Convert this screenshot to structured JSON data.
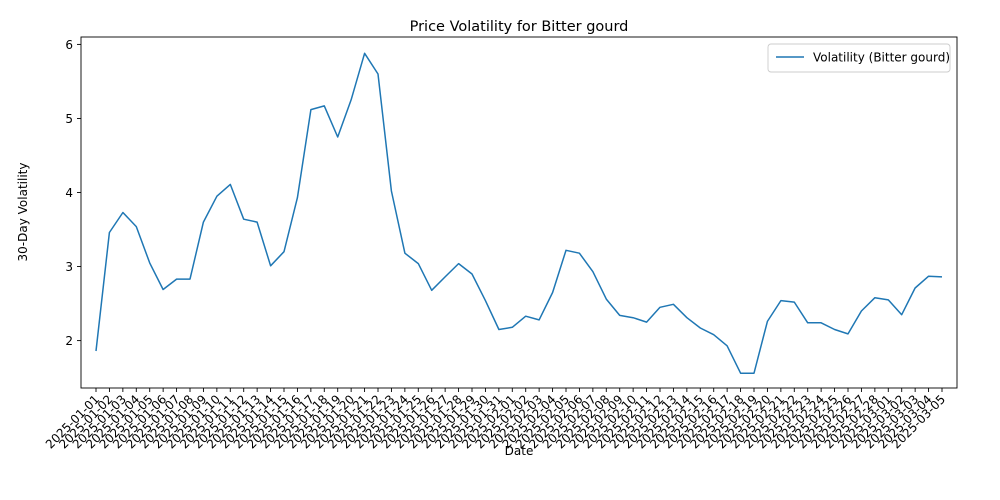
{
  "chart_data": {
    "type": "line",
    "title": "Price Volatility for Bitter gourd",
    "xlabel": "Date",
    "ylabel": "30-Day Volatility",
    "ylim": [
      1.36,
      6.1
    ],
    "yticks": [
      2,
      3,
      4,
      5,
      6
    ],
    "grid": false,
    "legend_position": "top-right",
    "x": [
      "2025-01-01",
      "2025-01-02",
      "2025-01-03",
      "2025-01-04",
      "2025-01-05",
      "2025-01-06",
      "2025-01-07",
      "2025-01-08",
      "2025-01-09",
      "2025-01-10",
      "2025-01-11",
      "2025-01-12",
      "2025-01-13",
      "2025-01-14",
      "2025-01-15",
      "2025-01-16",
      "2025-01-17",
      "2025-01-18",
      "2025-01-19",
      "2025-01-20",
      "2025-01-21",
      "2025-01-22",
      "2025-01-23",
      "2025-01-24",
      "2025-01-25",
      "2025-01-26",
      "2025-01-27",
      "2025-01-28",
      "2025-01-29",
      "2025-01-30",
      "2025-01-31",
      "2025-02-01",
      "2025-02-02",
      "2025-02-03",
      "2025-02-04",
      "2025-02-05",
      "2025-02-06",
      "2025-02-07",
      "2025-02-08",
      "2025-02-09",
      "2025-02-10",
      "2025-02-11",
      "2025-02-12",
      "2025-02-13",
      "2025-02-14",
      "2025-02-15",
      "2025-02-16",
      "2025-02-17",
      "2025-02-18",
      "2025-02-19",
      "2025-02-20",
      "2025-02-21",
      "2025-02-22",
      "2025-02-23",
      "2025-02-24",
      "2025-02-25",
      "2025-02-26",
      "2025-02-27",
      "2025-02-28",
      "2025-03-01",
      "2025-03-02",
      "2025-03-03",
      "2025-03-04",
      "2025-03-05"
    ],
    "series": [
      {
        "name": "Volatility (Bitter gourd)",
        "color": "#1f77b4",
        "values": [
          1.86,
          3.46,
          3.73,
          3.54,
          3.05,
          2.69,
          2.83,
          2.83,
          3.6,
          3.95,
          4.11,
          3.64,
          3.6,
          3.01,
          3.2,
          3.93,
          5.12,
          5.17,
          4.75,
          5.25,
          5.88,
          5.6,
          4.02,
          3.18,
          3.04,
          2.68,
          2.86,
          3.04,
          2.9,
          2.54,
          2.15,
          2.18,
          2.33,
          2.28,
          2.65,
          3.22,
          3.18,
          2.93,
          2.56,
          2.34,
          2.31,
          2.25,
          2.45,
          2.49,
          2.31,
          2.17,
          2.08,
          1.93,
          1.56,
          1.56,
          2.26,
          2.54,
          2.52,
          2.24,
          2.24,
          2.15,
          2.09,
          2.4,
          2.58,
          2.55,
          2.35,
          2.71,
          2.87,
          2.86
        ]
      }
    ]
  }
}
